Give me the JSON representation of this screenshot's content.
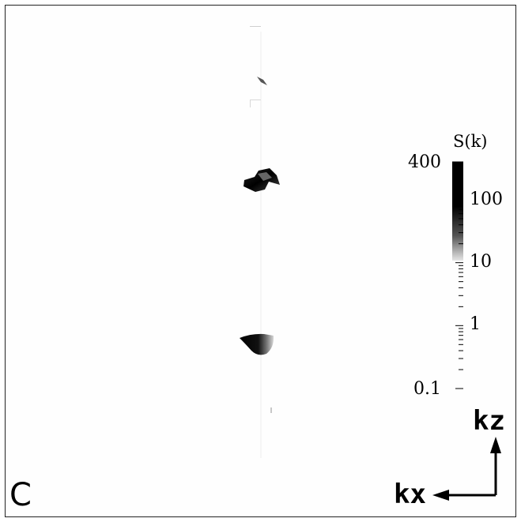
{
  "panel_label": "C",
  "chart_data": {
    "type": "heatmap",
    "title": "",
    "colormap": "white-to-black (grayscale)",
    "colorbar": {
      "label": "S(k)",
      "scale": "log",
      "range": [
        0.1,
        400
      ],
      "ticks": [
        {
          "value": 400,
          "label": "400"
        },
        {
          "value": 100,
          "label": "100"
        },
        {
          "value": 10,
          "label": "10"
        },
        {
          "value": 1,
          "label": "1"
        },
        {
          "value": 0.1,
          "label": "0.1"
        }
      ]
    },
    "axes": {
      "horizontal": {
        "label": "kx",
        "direction": "left"
      },
      "vertical": {
        "label": "kz",
        "direction": "up"
      }
    },
    "peaks": [
      {
        "id": "upper-peak",
        "shape": "twisted streak",
        "relative_intensity": "high",
        "approx_S": 300
      },
      {
        "id": "lower-peak",
        "shape": "crescent",
        "relative_intensity": "high",
        "approx_S": 300
      },
      {
        "id": "top-small-peak",
        "shape": "small streak",
        "relative_intensity": "medium",
        "approx_S": 20
      }
    ]
  }
}
